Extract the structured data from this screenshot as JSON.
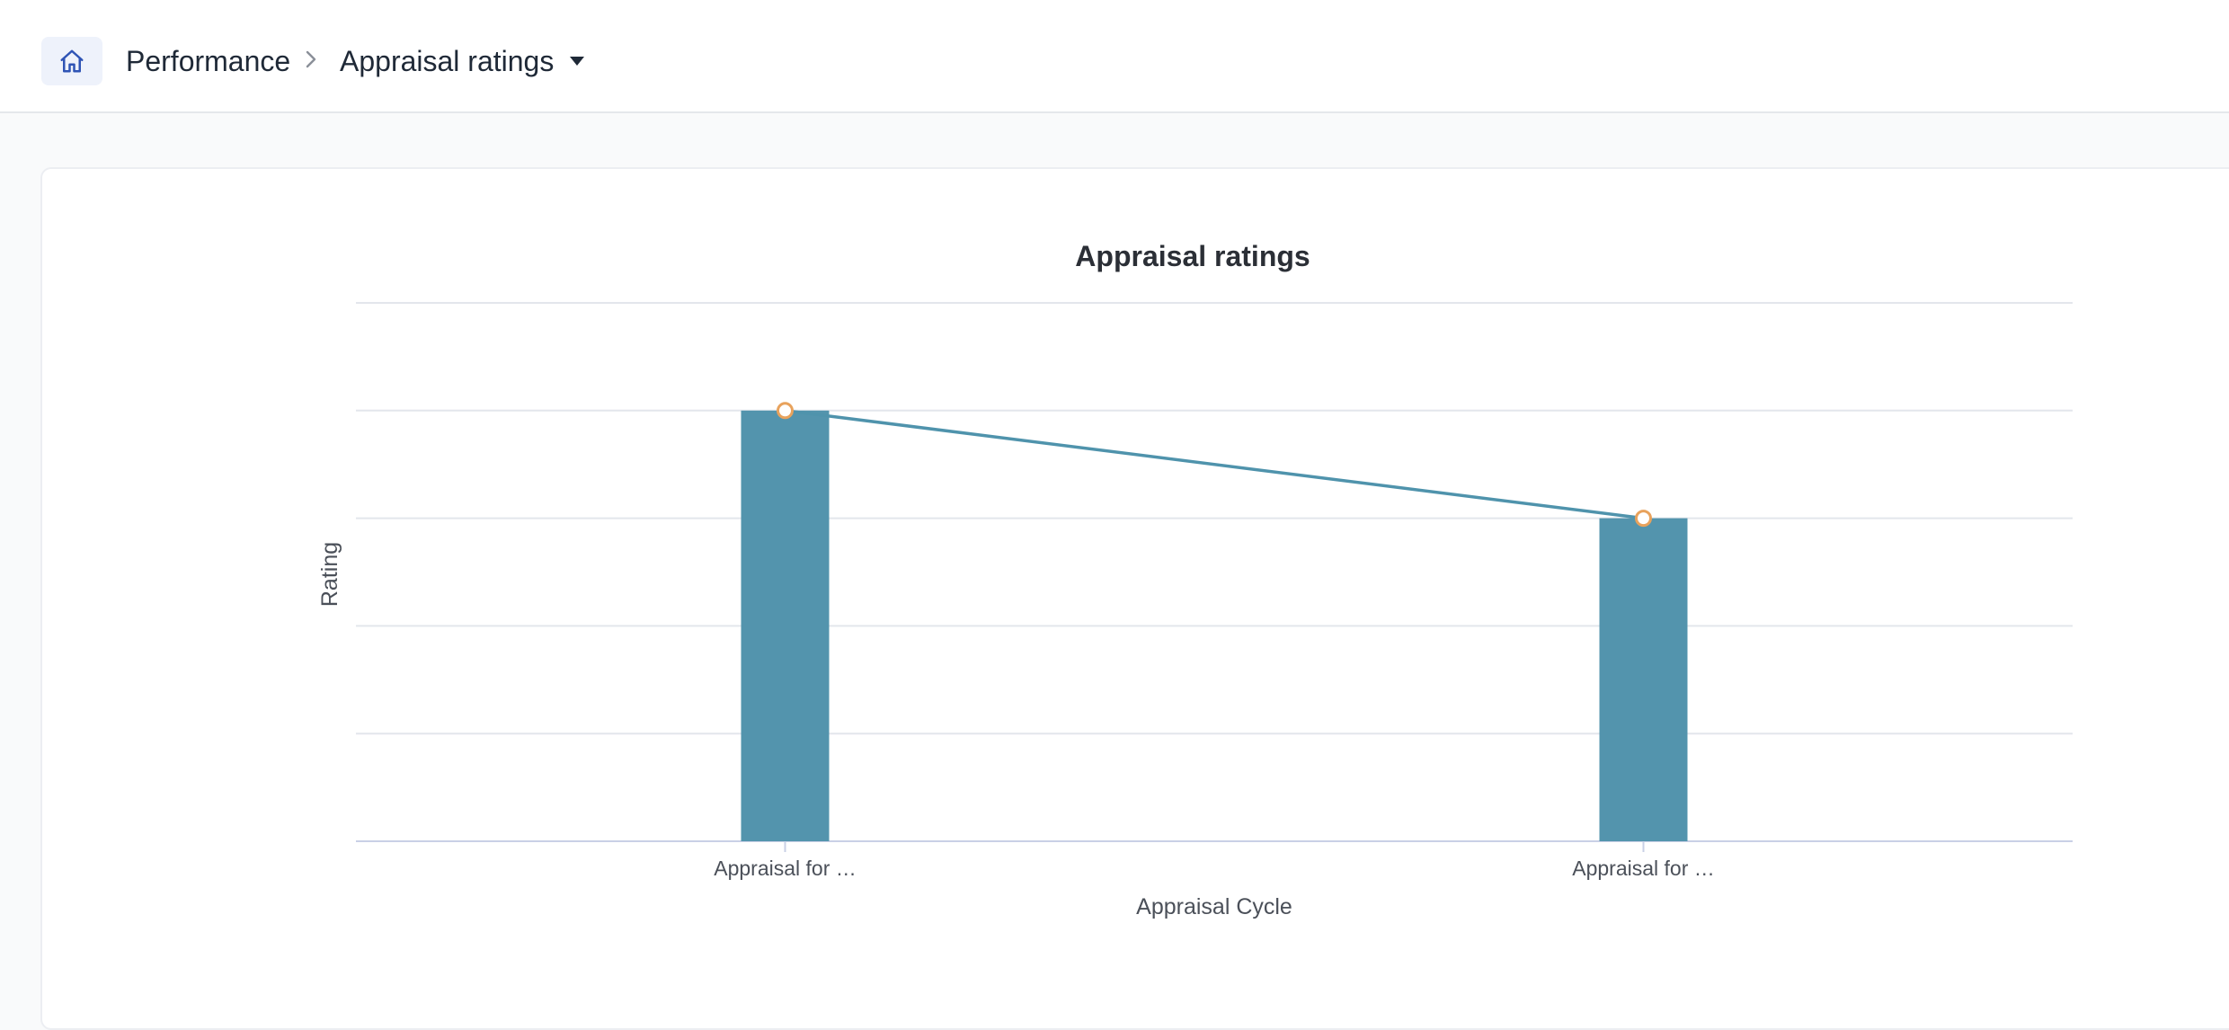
{
  "breadcrumb": {
    "home_icon": "home-icon",
    "root": "Performance",
    "separator_icon": "chevron-right-icon",
    "current": "Appraisal ratings",
    "dropdown_icon": "caret-down-icon"
  },
  "colors": {
    "bar": "#5394ad",
    "line": "#4f93ac",
    "marker": "#e8a25c",
    "grid": "#e3e6ec",
    "axis": "#c9d0e6"
  },
  "chart_data": {
    "type": "bar",
    "title": "Appraisal ratings",
    "xlabel": "Appraisal Cycle",
    "ylabel": "Rating",
    "categories": [
      "Appraisal for …",
      "Appraisal for …"
    ],
    "series": [
      {
        "type": "bar",
        "values": [
          4,
          3
        ]
      },
      {
        "type": "line",
        "values": [
          4,
          3
        ]
      }
    ],
    "ylim": [
      0,
      5
    ],
    "grid": true,
    "y_tick_labels_shown": false
  }
}
